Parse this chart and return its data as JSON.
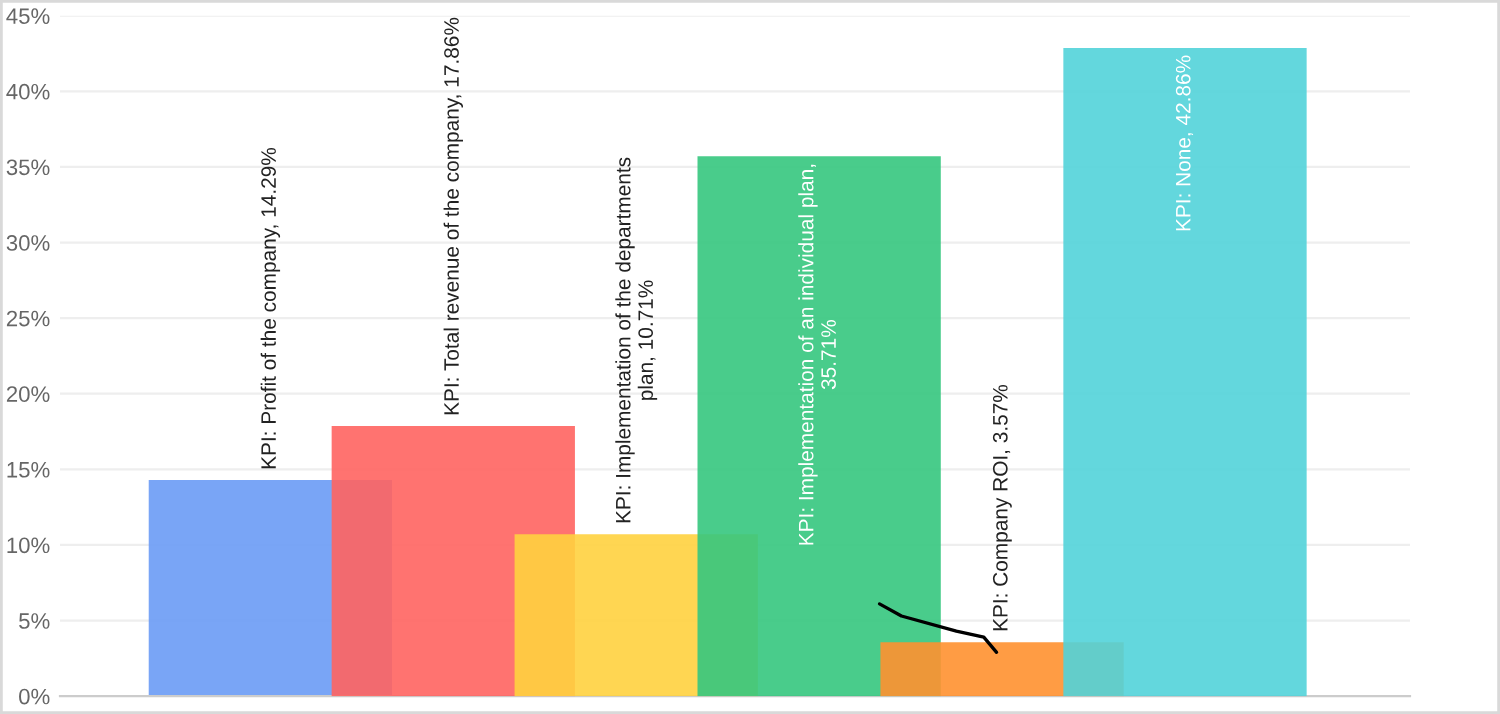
{
  "chart_data": {
    "type": "bar",
    "categories": [
      null,
      null,
      null,
      null,
      null,
      null
    ],
    "values": [
      14.29,
      17.86,
      10.71,
      35.71,
      3.57,
      42.86
    ],
    "colors": [
      "#6a9bf5",
      "#ff6461",
      "#ffd23f",
      "#35c67e",
      "#ff9130",
      "#52d3d9"
    ],
    "value_labels": [
      "KPI: Profit of the company, 14.29%",
      "KPI: Total revenue of the company, 17.86%",
      "KPI: Implementation of the departments\nplan, 10.71%",
      "KPI: Implementation of an individual plan,\n35.71%",
      "KPI: Company ROI, 3.57%",
      "KPI: None, 42.86%"
    ],
    "ylim": [
      0,
      45
    ],
    "yticks": [
      {
        "value": 0,
        "label": "0%"
      },
      {
        "value": 5,
        "label": "5%"
      },
      {
        "value": 10,
        "label": "10%"
      },
      {
        "value": 15,
        "label": "15%"
      },
      {
        "value": 20,
        "label": "20%"
      },
      {
        "value": 25,
        "label": "25%"
      },
      {
        "value": 30,
        "label": "30%"
      },
      {
        "value": 35,
        "label": "35%"
      },
      {
        "value": 40,
        "label": "40%"
      },
      {
        "value": 45,
        "label": "45%"
      }
    ],
    "grid": "y",
    "tick_labels": "y"
  }
}
